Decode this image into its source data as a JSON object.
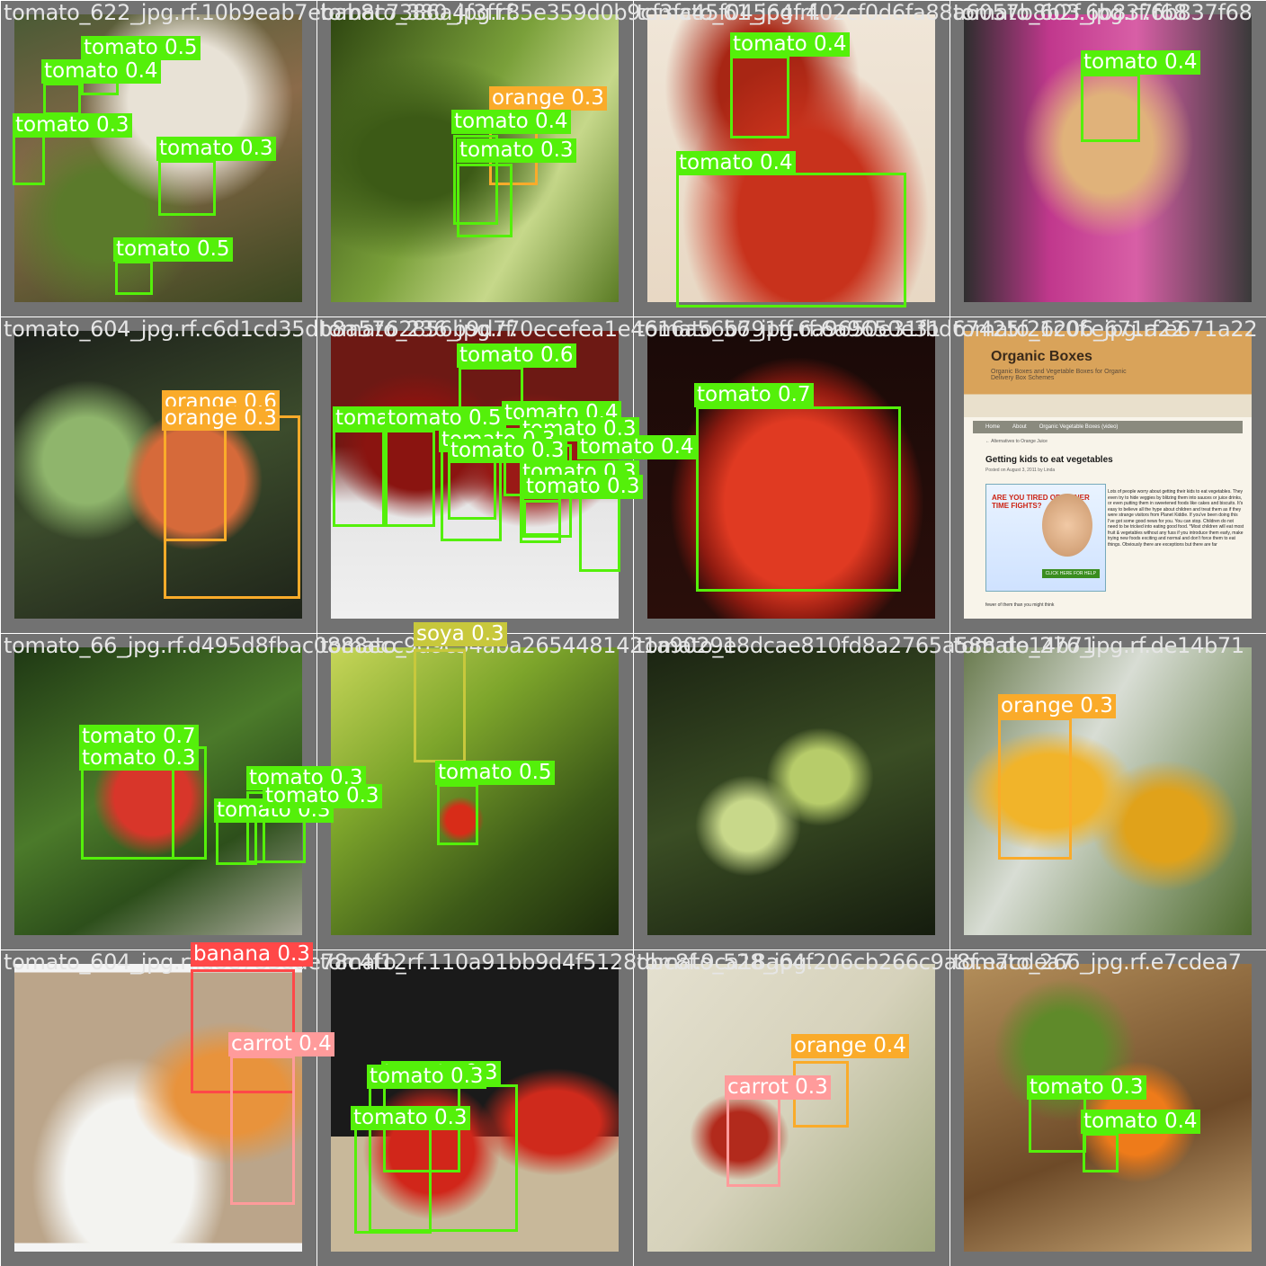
{
  "tiles": [
    {
      "title": "tomato_622_jpg.rf.10b9eab7ebab8c7386a4f3ff.85e359d0b9cf3fc45f04564f.402cf0d6fa88a6057b8b2f.6b837f68",
      "boxes": [
        {
          "label": "tomato 0.5",
          "cls": "tomato"
        },
        {
          "label": "tomato 0.4",
          "cls": "tomato"
        },
        {
          "label": "tomato 0.3",
          "cls": "tomato"
        },
        {
          "label": "tomato 0.3",
          "cls": "tomato"
        },
        {
          "label": "tomato 0.5",
          "cls": "tomato"
        }
      ]
    },
    {
      "title": "tomato_380_jpg.rf.",
      "boxes": [
        {
          "label": "orange 0.3",
          "cls": "orange"
        },
        {
          "label": "tomato 0.4",
          "cls": "tomato"
        },
        {
          "label": "tomato 0.3",
          "cls": "tomato"
        }
      ]
    },
    {
      "title": "tomato_61_jpg.rf.",
      "boxes": [
        {
          "label": "tomato 0.4",
          "cls": "tomato"
        },
        {
          "label": "tomato 0.4",
          "cls": "tomato"
        }
      ]
    },
    {
      "title": "tomato_603_jpg.rf.6b837f68",
      "boxes": [
        {
          "label": "tomato 0.4",
          "cls": "tomato"
        }
      ]
    },
    {
      "title": "tomato_604_jpg.rf.c6d1cd35db8a5762856b9d770ecefea1e4616a56b791ff.6a9650e31fbd67425f26c0f.e671a22",
      "boxes": [
        {
          "label": "orange 0.6",
          "cls": "orange"
        },
        {
          "label": "orange 0.3",
          "cls": "orange"
        }
      ]
    },
    {
      "title": "tomato_236_jpg.rf.",
      "boxes": [
        {
          "label": "tomato 0.6",
          "cls": "tomato"
        },
        {
          "label": "tomato 0.6",
          "cls": "tomato"
        },
        {
          "label": "tomato 0.5",
          "cls": "tomato"
        },
        {
          "label": "tomato 0.4",
          "cls": "tomato"
        },
        {
          "label": "tomato 0.3",
          "cls": "tomato"
        },
        {
          "label": "tomato 0.4",
          "cls": "tomato"
        },
        {
          "label": "tomato 0.3",
          "cls": "tomato"
        },
        {
          "label": "tomato 0.3",
          "cls": "tomato"
        },
        {
          "label": "tomato 0.3",
          "cls": "tomato"
        },
        {
          "label": "tomato 0.3",
          "cls": "tomato"
        }
      ]
    },
    {
      "title": "tomato_56_jpg.rf.6a9650e31",
      "boxes": [
        {
          "label": "tomato 0.7",
          "cls": "tomato"
        }
      ]
    },
    {
      "title": "tomato_1206_jpg.rf.e671a22",
      "boxes": [],
      "webpage": {
        "title": "Organic Boxes",
        "subtitle": "Organic Boxes and Vegetable Boxes for Organic Delivery Box Schemes",
        "nav": [
          "Home",
          "About",
          "Organic Vegetable Boxes (video)"
        ],
        "crumb": "← Alternatives to Orange Juice",
        "heading": "Getting kids to eat vegetables",
        "meta": "Posted on August 3, 2011 by Linda",
        "ad": "ARE YOU TIRED OF DINNER TIME FIGHTS?",
        "ad_button": "CLICK HERE FOR HELP",
        "body": "Lots of people worry about getting their kids to eat vegetables. They even try to hide veggies by blitzing them into sauces or juice drinks, or even putting them in sweetened foods like cakes and biscuits. It's easy to believe all the hype about children and treat them as if they were strange visitors from Planet Kiddie. If you've been doing this I've got some good news for you. You can stop. Children do not need to be tricked into eating good food. *Most children will eat most fruit & vegetables without any fuss if you introduce them early, make trying new foods exciting and normal and don't force them to eat things. Obviously there are exceptions but there are far",
        "foot": "fewer of them than you might think"
      }
    },
    {
      "title": "tomato_66_jpg.rf.d495d8fbac0888ecc9d9c34aba2654481421a9029e8dcae810fd8a2765a588.de14b71",
      "boxes": [
        {
          "label": "tomato 0.7",
          "cls": "tomato"
        },
        {
          "label": "tomato 0.3",
          "cls": "tomato"
        },
        {
          "label": "tomato 0.3",
          "cls": "tomato"
        },
        {
          "label": "tomato 0.3",
          "cls": "tomato"
        },
        {
          "label": "tomato 0.3",
          "cls": "tomato"
        }
      ]
    },
    {
      "title": "tomato_",
      "boxes": [
        {
          "label": "soya 0.3",
          "cls": "soya"
        },
        {
          "label": "tomato 0.5",
          "cls": "tomato"
        }
      ]
    },
    {
      "title": "tomato_1",
      "boxes": []
    },
    {
      "title": "tomato_276_jpg.rf.de14b71",
      "boxes": [
        {
          "label": "orange 0.3",
          "cls": "orange"
        }
      ]
    },
    {
      "title": "tomato_604_jpg.rf.a8e783dde78c4f12rf.110a91bb9d4f5128dbc8f.9ca18a64f206cb266c9a8f.e7cdea7",
      "boxes": [
        {
          "label": "banana 0.3",
          "cls": "banana"
        },
        {
          "label": "carrot 0.4",
          "cls": "carrot"
        }
      ]
    },
    {
      "title": "tomato_",
      "boxes": [
        {
          "label": "tomato 0.3",
          "cls": "tomato"
        },
        {
          "label": "tomato 0.3",
          "cls": "tomato"
        },
        {
          "label": "tomato 0.3",
          "cls": "tomato"
        }
      ]
    },
    {
      "title": "tomato_528_jpg.",
      "boxes": [
        {
          "label": "orange 0.4",
          "cls": "orange"
        },
        {
          "label": "carrot 0.3",
          "cls": "carrot"
        }
      ]
    },
    {
      "title": "tomato_266_jpg.rf.e7cdea7",
      "boxes": [
        {
          "label": "tomato 0.3",
          "cls": "tomato"
        },
        {
          "label": "tomato 0.4",
          "cls": "tomato"
        }
      ]
    }
  ]
}
